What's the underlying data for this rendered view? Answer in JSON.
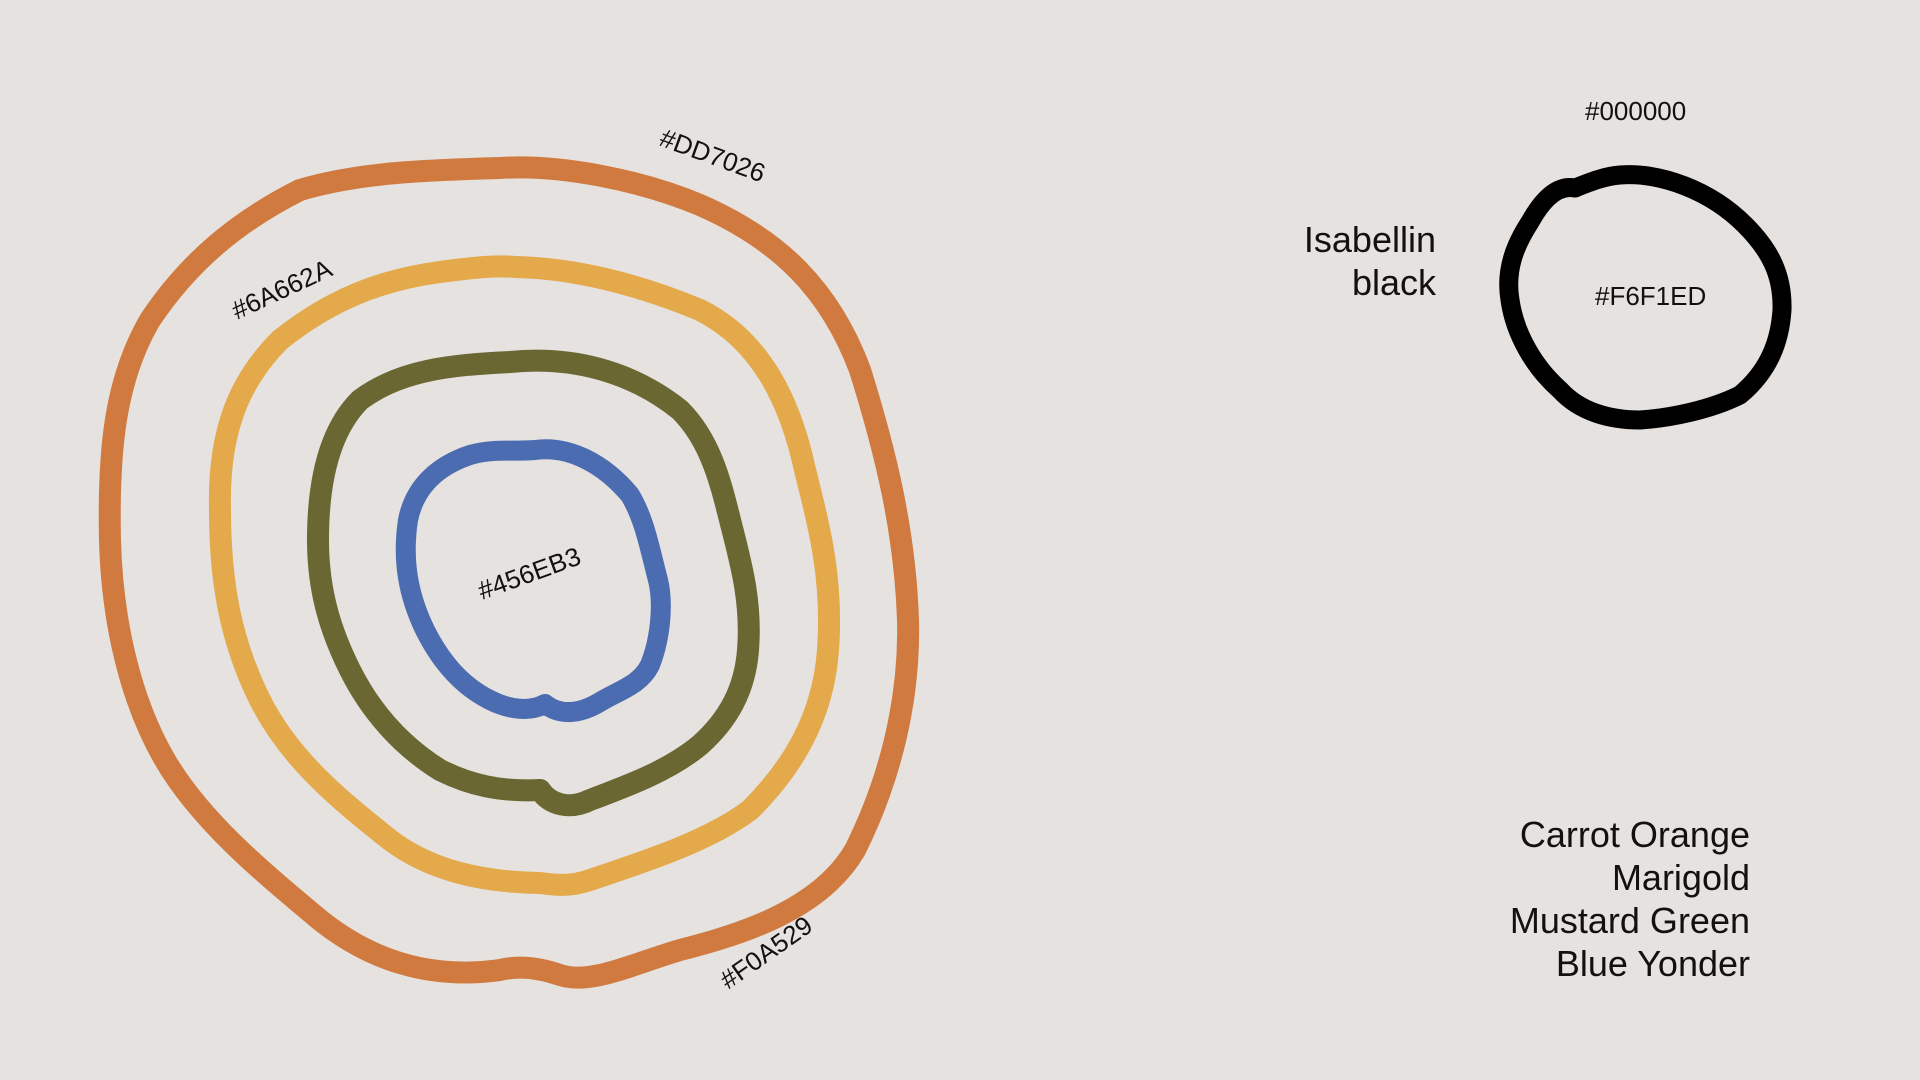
{
  "background_color": "#E6E2DF",
  "concentric_rings": [
    {
      "name": "Carrot Orange",
      "hex_label": "#DD7026",
      "color": "#D07A3F"
    },
    {
      "name": "Marigold",
      "hex_label": "#F0A529",
      "color": "#E4A94A"
    },
    {
      "name": "Mustard Green",
      "hex_label": "#6A662A",
      "color": "#6A6733"
    },
    {
      "name": "Blue Yonder",
      "hex_label": "#456EB3",
      "color": "#4C6CB1"
    }
  ],
  "isabellin_ring": {
    "stroke_hex_label": "#000000",
    "fill_hex_label": "#F6F1ED",
    "stroke_color": "#000000"
  },
  "isabellin_names": [
    "Isabellin",
    "black"
  ],
  "palette_names": [
    "Carrot Orange",
    "Marigold",
    "Mustard Green",
    "Blue Yonder"
  ]
}
